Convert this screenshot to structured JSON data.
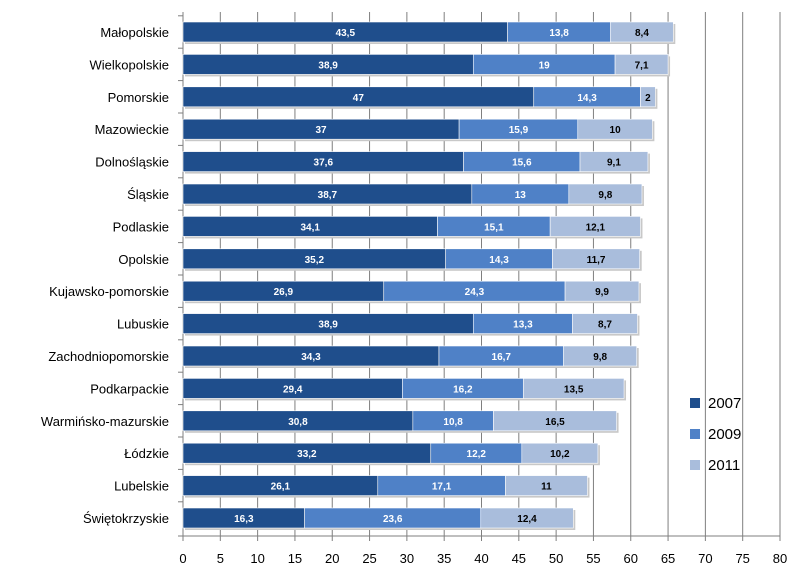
{
  "chart_data": {
    "type": "bar",
    "orientation": "horizontal",
    "stacked": true,
    "categories": [
      "Małopolskie",
      "Wielkopolskie",
      "Pomorskie",
      "Mazowieckie",
      "Dolnośląskie",
      "Śląskie",
      "Podlaskie",
      "Opolskie",
      "Kujawsko-pomorskie",
      "Lubuskie",
      "Zachodniopomorskie",
      "Podkarpackie",
      "Warmińsko-mazurskie",
      "Łódzkie",
      "Lubelskie",
      "Świętokrzyskie"
    ],
    "series": [
      {
        "name": "2007",
        "color": "#1f4e8c",
        "values": [
          43.5,
          38.9,
          47,
          37,
          37.6,
          38.7,
          34.1,
          35.2,
          26.9,
          38.9,
          34.3,
          29.4,
          30.8,
          33.2,
          26.1,
          16.3
        ],
        "labels": [
          "43,5",
          "38,9",
          "47",
          "37",
          "37,6",
          "38,7",
          "34,1",
          "35,2",
          "26,9",
          "38,9",
          "34,3",
          "29,4",
          "30,8",
          "33,2",
          "26,1",
          "16,3"
        ]
      },
      {
        "name": "2009",
        "color": "#4f81c7",
        "values": [
          13.8,
          19,
          14.3,
          15.9,
          15.6,
          13,
          15.1,
          14.3,
          24.3,
          13.3,
          16.7,
          16.2,
          10.8,
          12.2,
          17.1,
          23.6
        ],
        "labels": [
          "13,8",
          "19",
          "14,3",
          "15,9",
          "15,6",
          "13",
          "15,1",
          "14,3",
          "24,3",
          "13,3",
          "16,7",
          "16,2",
          "10,8",
          "12,2",
          "17,1",
          "23,6"
        ]
      },
      {
        "name": "2011",
        "color": "#a9bddc",
        "values": [
          8.4,
          7.1,
          2,
          10,
          9.1,
          9.8,
          12.1,
          11.7,
          9.9,
          8.7,
          9.8,
          13.5,
          16.5,
          10.2,
          11,
          12.4
        ],
        "labels": [
          "8,4",
          "7,1",
          "2",
          "10",
          "9,1",
          "9,8",
          "12,1",
          "11,7",
          "9,9",
          "8,7",
          "9,8",
          "13,5",
          "16,5",
          "10,2",
          "11",
          "12,4"
        ]
      }
    ],
    "xlim": [
      0,
      80
    ],
    "xticks": [
      "0",
      "5",
      "10",
      "15",
      "20",
      "25",
      "30",
      "35",
      "40",
      "45",
      "50",
      "55",
      "60",
      "65",
      "70",
      "75",
      "80"
    ],
    "grid": "vertical",
    "legend": "right",
    "title": "",
    "xlabel": "",
    "ylabel": ""
  }
}
